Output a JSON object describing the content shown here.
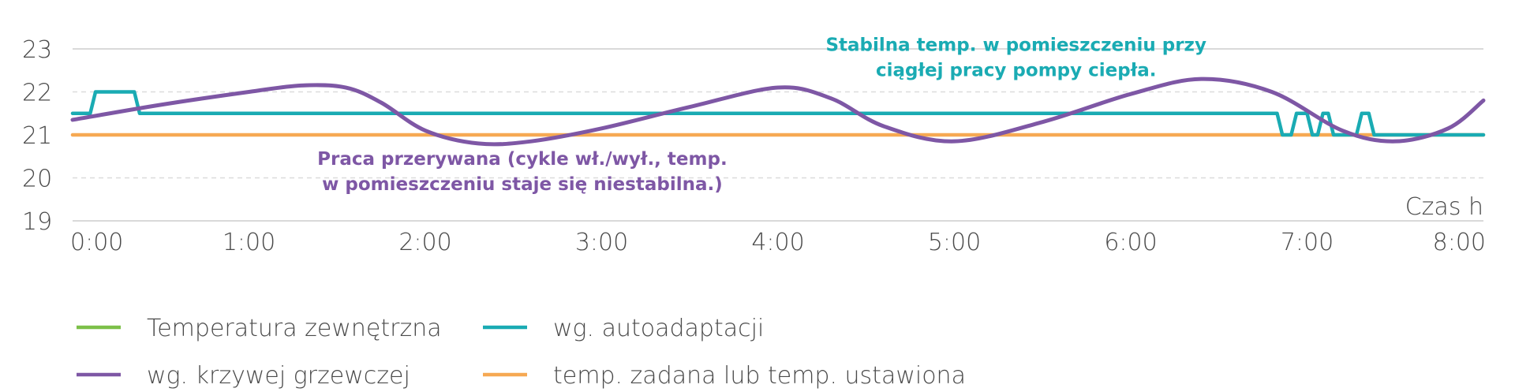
{
  "chart_data": {
    "type": "line",
    "xlabel": "Czas h",
    "ylabel": "",
    "xlim": [
      0,
      8
    ],
    "ylim": [
      19,
      23
    ],
    "x_ticks": [
      "0:00",
      "1:00",
      "2:00",
      "3:00",
      "4:00",
      "5:00",
      "6:00",
      "7:00",
      "8:00"
    ],
    "y_ticks": [
      "19",
      "20",
      "21",
      "22",
      "23"
    ],
    "grid": "horizontal dashed",
    "legend_position": "bottom",
    "series": [
      {
        "name": "Temperatura zewnętrzna",
        "color": "#7cc049",
        "x": [],
        "y": []
      },
      {
        "name": "wg. autoadaptacji",
        "color": "#1aabb3",
        "x": [
          0.0,
          0.1,
          0.13,
          0.35,
          0.38,
          6.83,
          6.86,
          6.91,
          6.94,
          7.0,
          7.03,
          7.06,
          7.09,
          7.12,
          7.15,
          7.28,
          7.31,
          7.35,
          7.38,
          8.0
        ],
        "y": [
          21.5,
          21.5,
          22.0,
          22.0,
          21.5,
          21.5,
          21.0,
          21.0,
          21.5,
          21.5,
          21.0,
          21.0,
          21.5,
          21.5,
          21.0,
          21.0,
          21.5,
          21.5,
          21.0,
          21.0
        ]
      },
      {
        "name": "wg. krzywej grzewczej",
        "color": "#7e57a5",
        "x": [
          0.0,
          0.5,
          1.0,
          1.3,
          1.55,
          1.75,
          2.0,
          2.3,
          2.6,
          3.0,
          3.5,
          4.0,
          4.3,
          4.6,
          5.0,
          5.5,
          6.0,
          6.4,
          6.8,
          7.2,
          7.5,
          7.8,
          8.0
        ],
        "y": [
          21.35,
          21.7,
          22.0,
          22.15,
          22.1,
          21.75,
          21.1,
          20.8,
          20.85,
          21.15,
          21.65,
          22.1,
          21.85,
          21.2,
          20.85,
          21.3,
          21.95,
          22.3,
          22.0,
          21.1,
          20.85,
          21.15,
          21.8
        ]
      },
      {
        "name": "temp. zadana lub temp. ustawiona",
        "color": "#f6a953",
        "x": [
          0,
          8
        ],
        "y": [
          21.0,
          21.0
        ]
      }
    ],
    "annotations": [
      {
        "lines": [
          "Stabilna temp. w pomieszczeniu przy",
          "ciągłej pracy pompy ciepła."
        ],
        "color": "#1aabb3",
        "x": 5.35,
        "y": 22.95
      },
      {
        "lines": [
          "Praca przerywana (cykle wł./wył., temp.",
          "w pomieszczeniu staje się niestabilna.)"
        ],
        "color": "#7e57a5",
        "x": 2.55,
        "y": 20.3
      }
    ]
  }
}
